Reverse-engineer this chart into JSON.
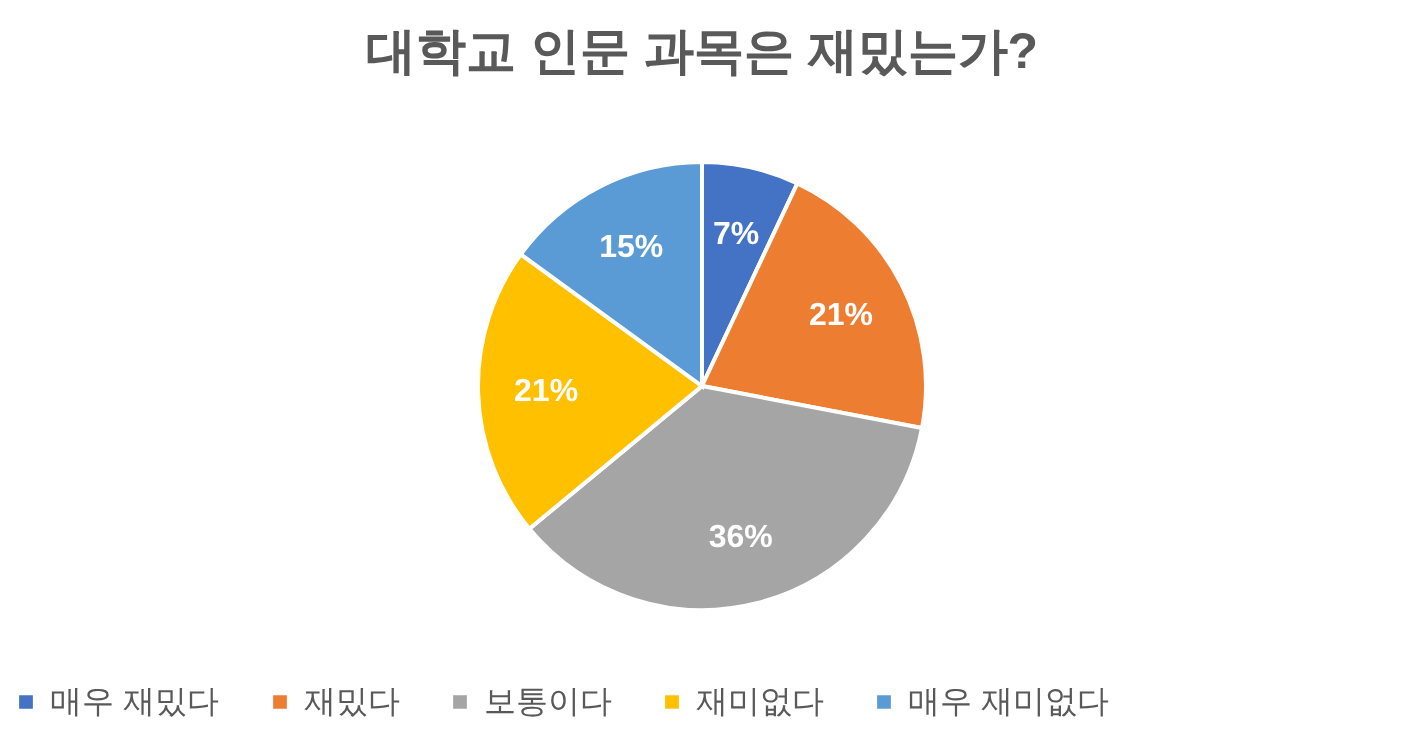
{
  "chart_data": {
    "type": "pie",
    "title": "대학교 인문 과목은 재밌는가?",
    "categories": [
      "매우 재밌다",
      "재밌다",
      "보통이다",
      "재미없다",
      "매우 재미없다"
    ],
    "values": [
      7,
      21,
      36,
      21,
      15
    ],
    "colors": [
      "#4472c4",
      "#ed7d31",
      "#a5a5a5",
      "#ffc000",
      "#5b9bd5"
    ],
    "value_labels": [
      "7%",
      "21%",
      "36%",
      "21%",
      "15%"
    ],
    "legend": "bottom"
  }
}
